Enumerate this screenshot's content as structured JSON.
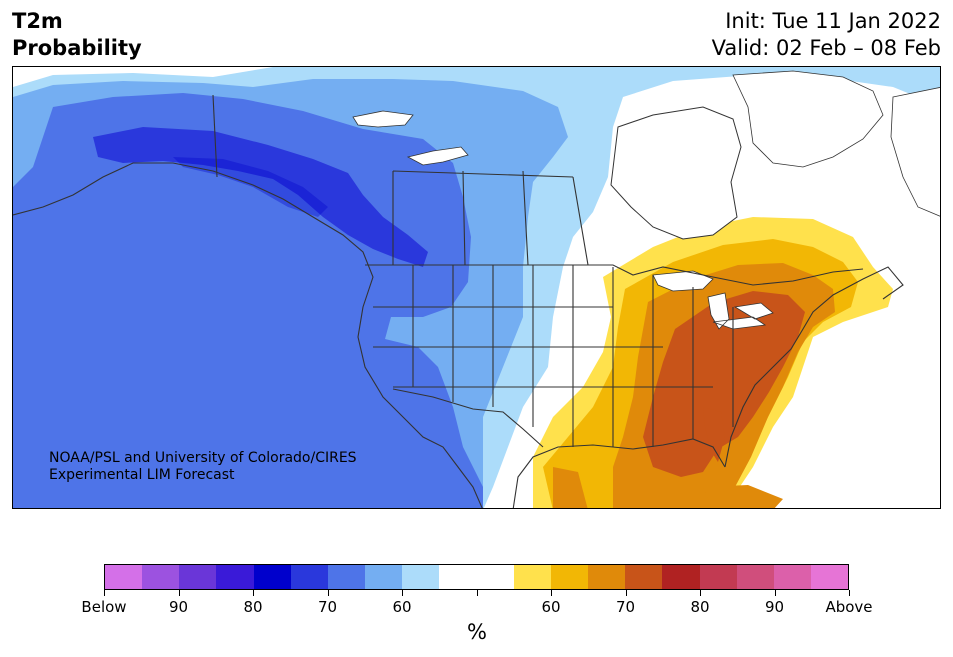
{
  "title": {
    "line1": "T2m",
    "line2": "Probability",
    "init": "Init: Tue 11 Jan 2022",
    "valid": "Valid: 02 Feb – 08 Feb"
  },
  "credit": {
    "line1": "NOAA/PSL and University of Colorado/CIRES",
    "line2": "Experimental LIM Forecast"
  },
  "colorbar": {
    "unit": "%",
    "colors": [
      "#d470e8",
      "#9c52e0",
      "#6a36d8",
      "#3a1ad8",
      "#0000cc",
      "#2a38dc",
      "#4e74e8",
      "#74aef2",
      "#acdcfa",
      "#ffffff",
      "#ffffff",
      "#ffe14c",
      "#f2b705",
      "#e08a0a",
      "#c85419",
      "#b02222",
      "#c23a52",
      "#d04e7c",
      "#dc60aa",
      "#e674d6"
    ],
    "labels": [
      "Below",
      "90",
      "80",
      "70",
      "60",
      "",
      "60",
      "70",
      "80",
      "90",
      "Above"
    ]
  },
  "palette": {
    "below_60": "#acdcfa",
    "below_70": "#74aef2",
    "below_80": "#4e74e8",
    "below_90": "#2a38dc",
    "above_60": "#ffe14c",
    "above_70": "#f2b705",
    "above_80": "#e08a0a",
    "above_90": "#c85419",
    "land": "#ffffff",
    "borders": "#333333"
  }
}
